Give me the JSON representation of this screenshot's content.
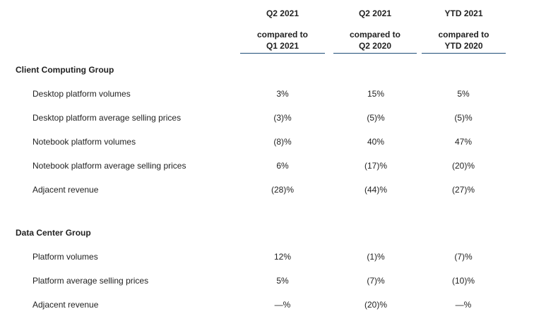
{
  "columns": [
    {
      "period": "Q2 2021",
      "line2": "compared to",
      "line3": "Q1 2021"
    },
    {
      "period": "Q2 2021",
      "line2": "compared to",
      "line3": "Q2 2020"
    },
    {
      "period": "YTD 2021",
      "line2": "compared to",
      "line3": "YTD 2020"
    }
  ],
  "groups": [
    {
      "title": "Client Computing Group",
      "rows": [
        {
          "label": "Desktop platform volumes",
          "values": [
            "3%",
            "15%",
            "5%"
          ]
        },
        {
          "label": "Desktop platform average selling prices",
          "values": [
            "(3)%",
            "(5)%",
            "(5)%"
          ]
        },
        {
          "label": "Notebook platform volumes",
          "values": [
            "(8)%",
            "40%",
            "47%"
          ]
        },
        {
          "label": "Notebook platform average selling prices",
          "values": [
            "6%",
            "(17)%",
            "(20)%"
          ]
        },
        {
          "label": "Adjacent revenue",
          "values": [
            "(28)%",
            "(44)%",
            "(27)%"
          ]
        }
      ]
    },
    {
      "title": "Data Center Group",
      "rows": [
        {
          "label": "Platform volumes",
          "values": [
            "12%",
            "(1)%",
            "(7)%"
          ]
        },
        {
          "label": "Platform average selling prices",
          "values": [
            "5%",
            "(7)%",
            "(10)%"
          ]
        },
        {
          "label": "Adjacent revenue",
          "values": [
            "—%",
            "(20)%",
            "—%"
          ]
        }
      ]
    }
  ],
  "colors": {
    "rule": "#1f4e79",
    "text": "#222222",
    "background": "#ffffff"
  }
}
